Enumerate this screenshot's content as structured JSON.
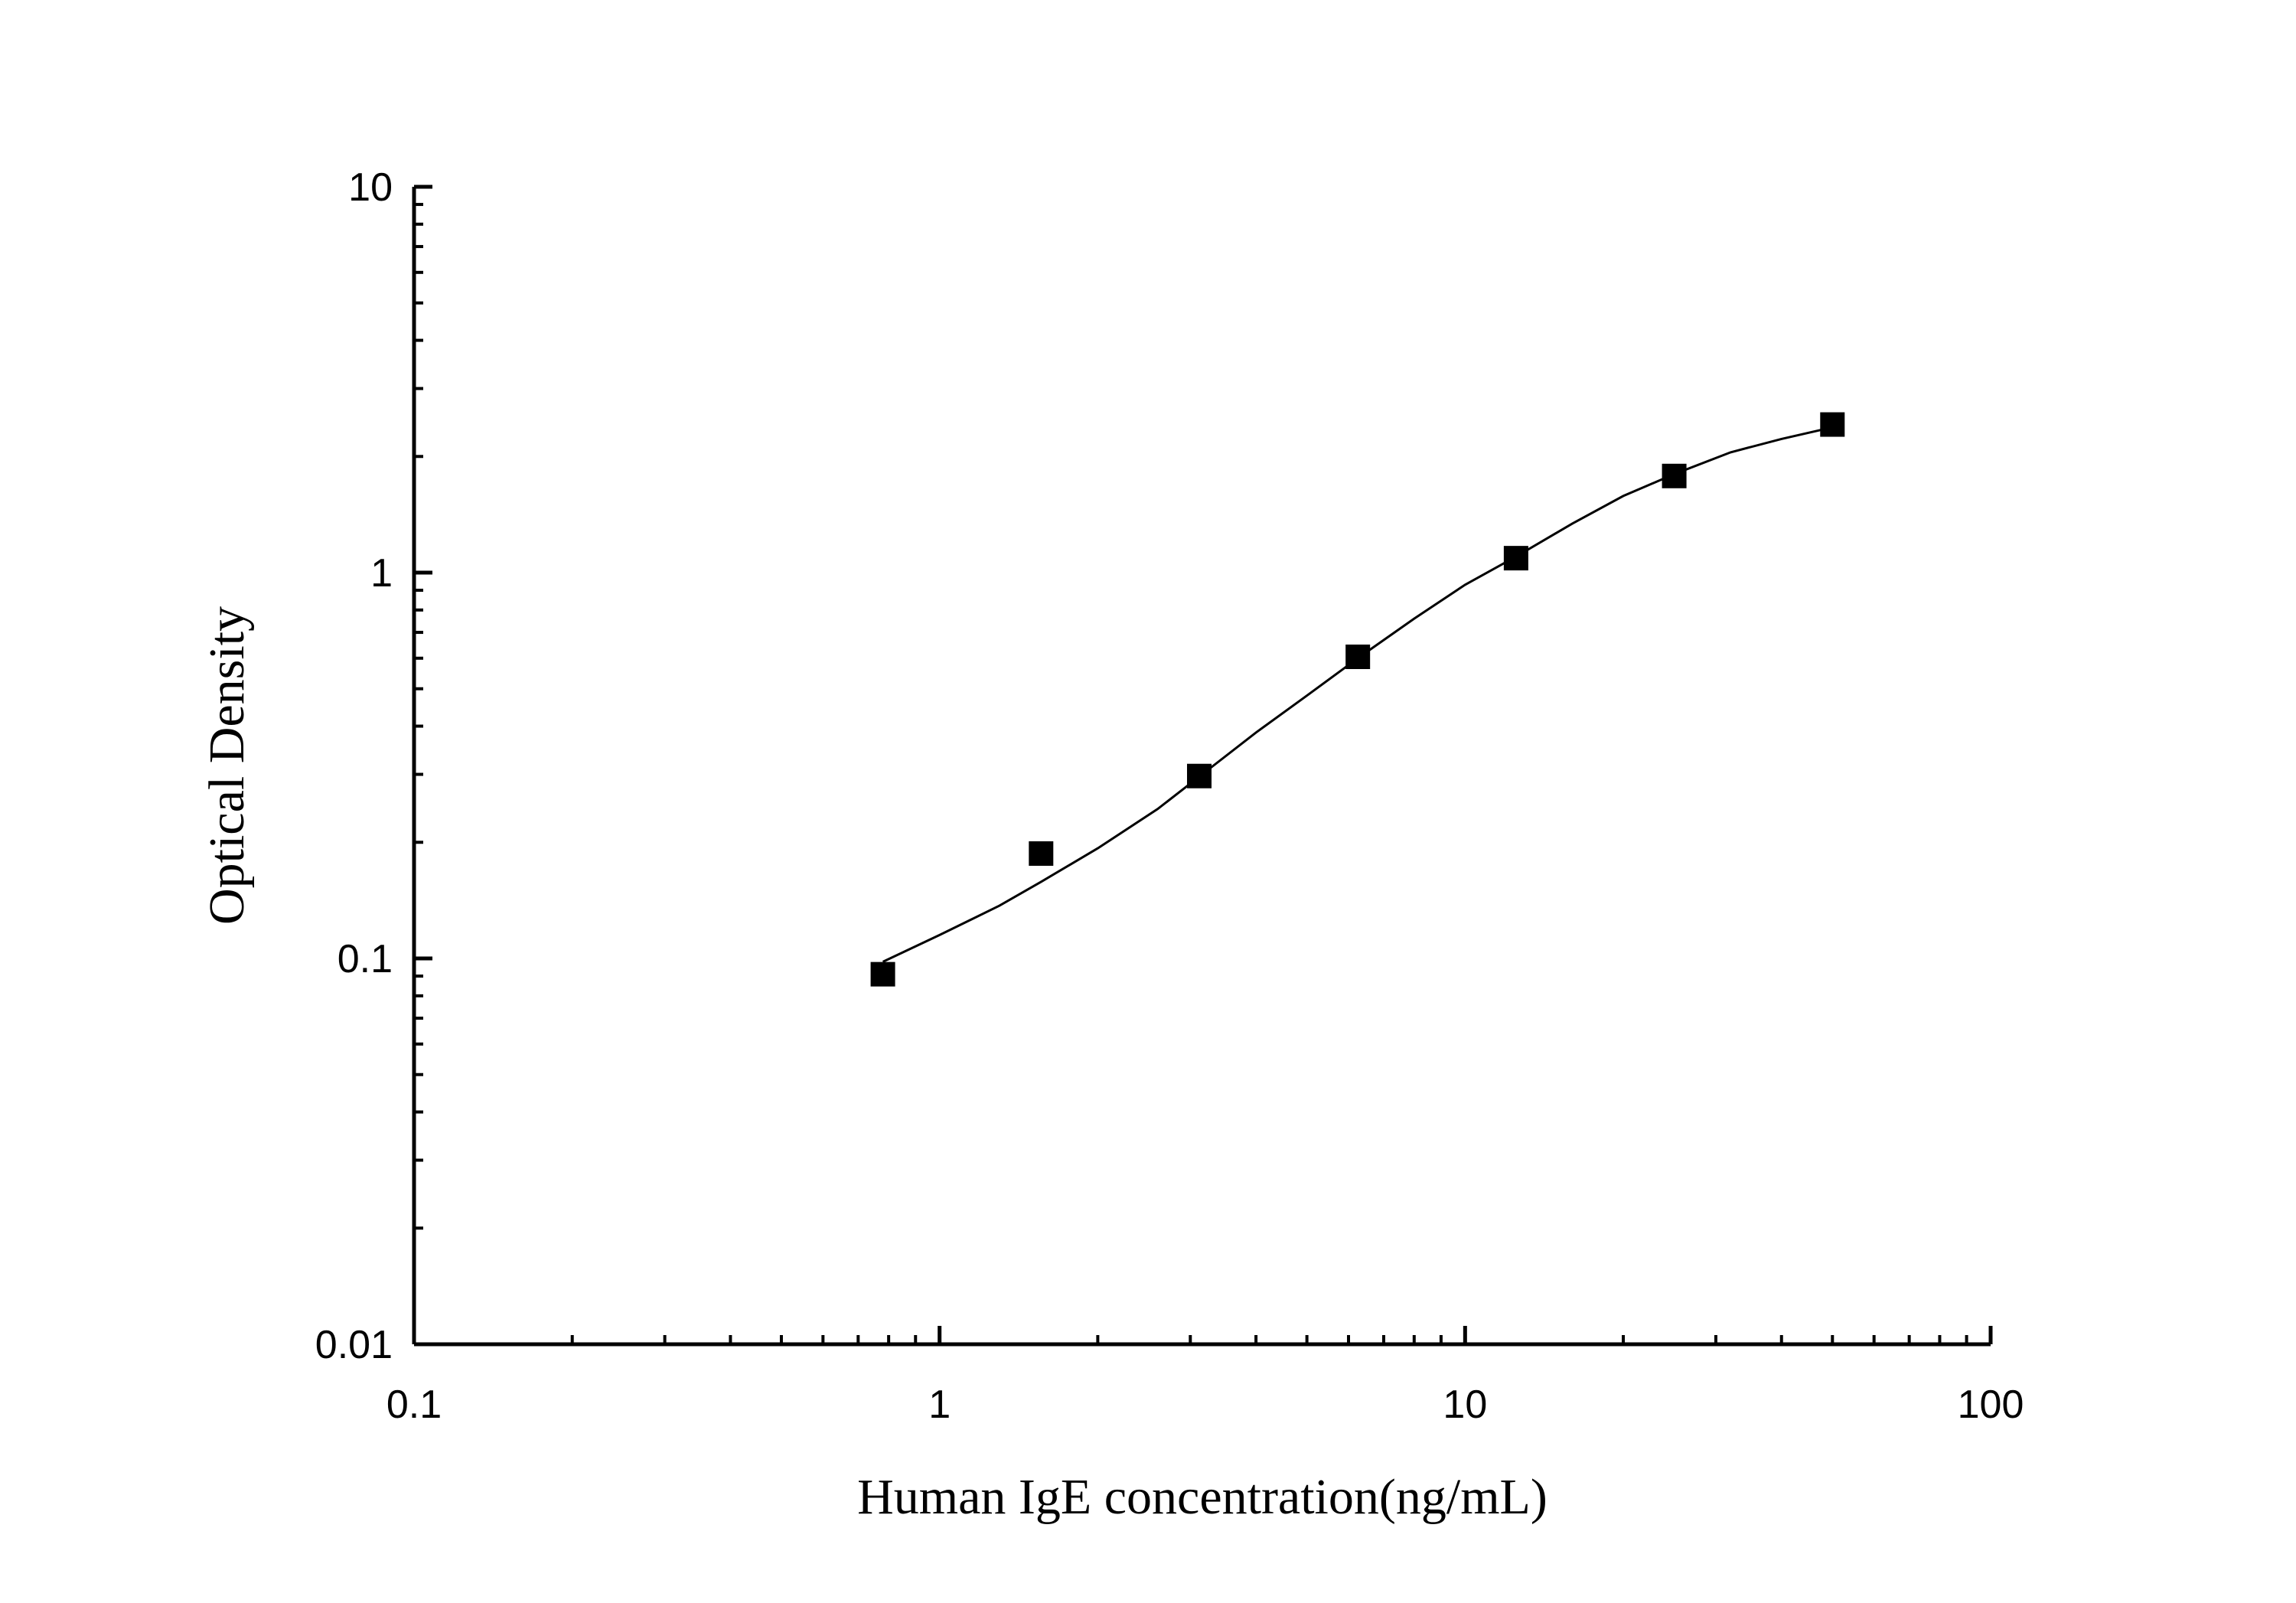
{
  "chart_data": {
    "type": "scatter",
    "xlabel": "Human IgE concentration(ng/mL)",
    "ylabel": "Optical Density",
    "xscale": "log",
    "yscale": "log",
    "xlim": [
      0.1,
      100
    ],
    "ylim": [
      0.01,
      10
    ],
    "x_ticks": [
      "0.1",
      "1",
      "10",
      "100"
    ],
    "y_ticks": [
      "0.01",
      "0.1",
      "1",
      "10"
    ],
    "grid": false,
    "legend": "none",
    "series": [
      {
        "marker": "square",
        "color": "#000000",
        "x": [
          0.78,
          1.56,
          3.12,
          6.25,
          12.5,
          25,
          50
        ],
        "y": [
          0.091,
          0.187,
          0.297,
          0.605,
          1.09,
          1.78,
          2.42
        ]
      }
    ],
    "fit_curve": {
      "color": "#000000",
      "x": [
        0.78,
        1.0,
        1.3,
        1.56,
        2.0,
        2.6,
        3.12,
        4.0,
        5.0,
        6.25,
        8.0,
        10.0,
        12.5,
        16.0,
        20.0,
        25.0,
        32.0,
        40.0,
        50.0
      ],
      "y": [
        0.098,
        0.115,
        0.137,
        0.158,
        0.193,
        0.244,
        0.296,
        0.385,
        0.48,
        0.6,
        0.76,
        0.93,
        1.1,
        1.34,
        1.58,
        1.8,
        2.05,
        2.22,
        2.38
      ]
    }
  }
}
